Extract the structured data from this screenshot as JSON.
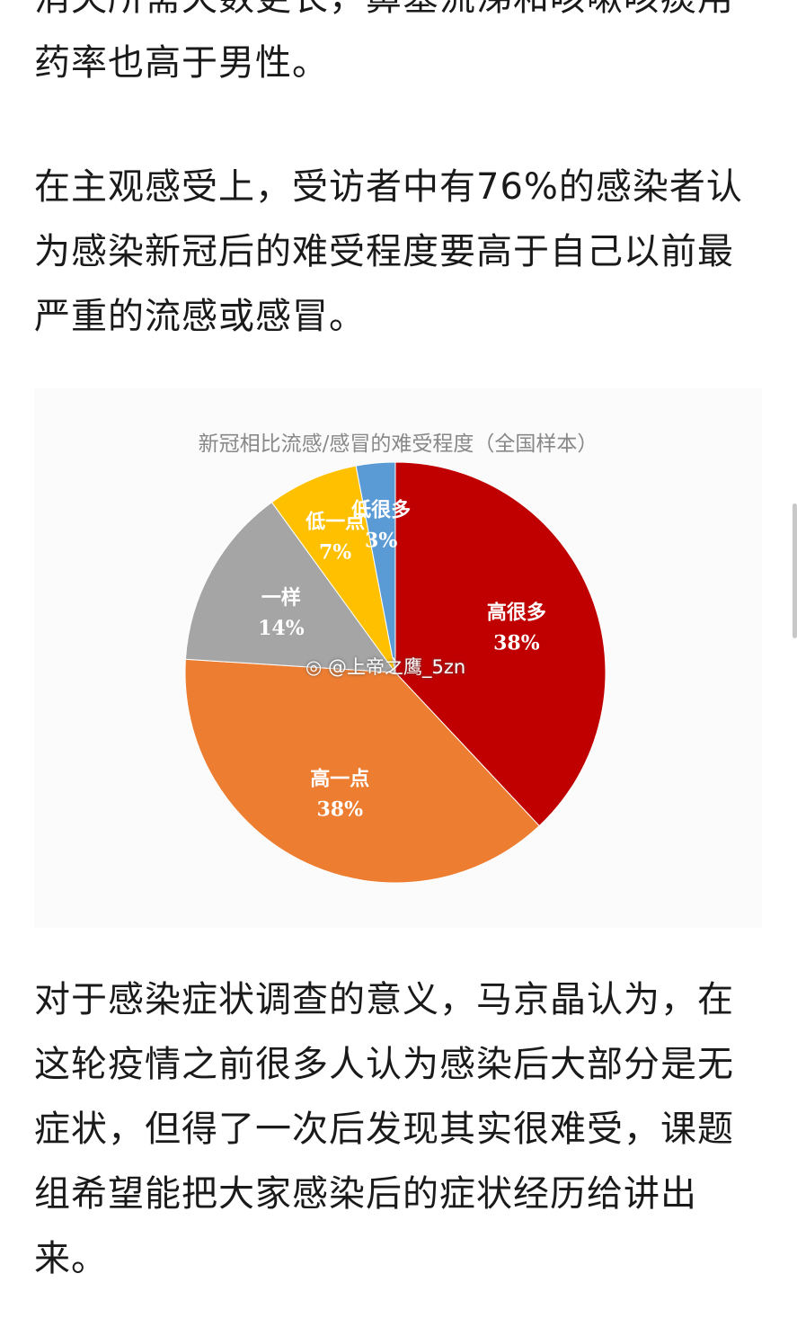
{
  "article": {
    "paragraphs": [
      "消失所需天数更长，鼻塞流涕和咳嗽咳痰用药率也高于男性。",
      "在主观感受上，受访者中有76%的感染者认为感染新冠后的难受程度要高于自己以前最严重的流感或感冒。",
      "对于感染症状调查的意义，马京晶认为，在这轮疫情之前很多人认为感染后大部分是无症状，但得了一次后发现其实很难受，课题组希望能把大家感染后的症状经历给讲出来。"
    ],
    "watermark": "@上帝之鹰_5zn",
    "watermark_icon": "weibo-icon"
  },
  "chart_data": {
    "type": "pie",
    "title": "新冠相比流感/感冒的难受程度（全国样本）",
    "categories": [
      "高很多",
      "高一点",
      "一样",
      "低一点",
      "低很多"
    ],
    "values": [
      38,
      38,
      14,
      7,
      3
    ],
    "labels": [
      "38%",
      "38%",
      "14%",
      "7%",
      "3%"
    ],
    "colors": [
      "#c00000",
      "#ed7d31",
      "#a5a5a5",
      "#ffc000",
      "#5b9bd5"
    ],
    "start": "12 o'clock, clockwise"
  }
}
